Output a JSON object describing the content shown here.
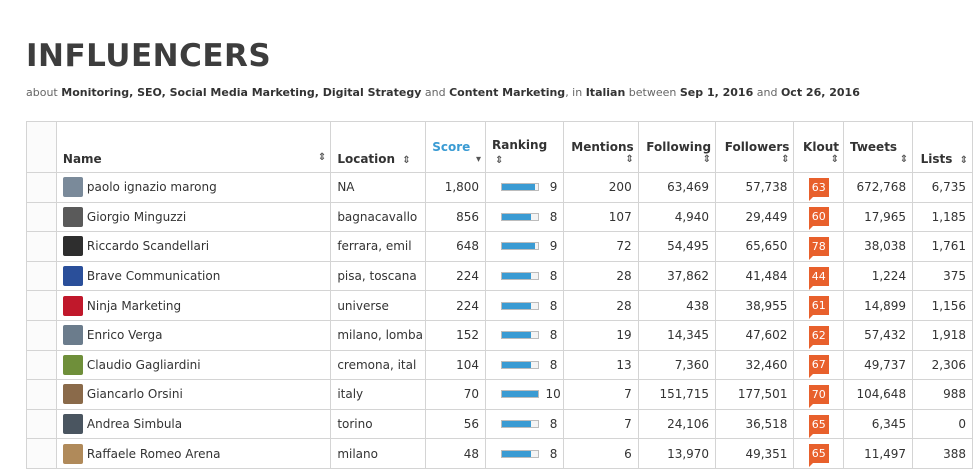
{
  "header": {
    "title": "INFLUENCERS",
    "subtitle": {
      "prefix": "about",
      "topics": "Monitoring, SEO, Social Media Marketing, Digital Strategy",
      "and1": "and",
      "topic_last": "Content Marketing",
      "in": ", in",
      "language": "Italian",
      "between": "between",
      "date_from": "Sep 1, 2016",
      "and2": "and",
      "date_to": "Oct 26, 2016"
    }
  },
  "columns": {
    "name": "Name",
    "location": "Location",
    "score": "Score",
    "ranking": "Ranking",
    "mentions": "Mentions",
    "following": "Following",
    "followers": "Followers",
    "klout": "Klout",
    "tweets": "Tweets",
    "lists": "Lists",
    "sort_both": "⇕",
    "sort_down": "▾"
  },
  "accent_color": "#3a9bd3",
  "klout_color": "#e8602c",
  "rows": [
    {
      "name": "paolo ignazio marong",
      "location": "NA",
      "score": "1,800",
      "ranking": "9",
      "ranking_fill": 0.9,
      "mentions": "200",
      "following": "63,469",
      "followers": "57,738",
      "klout": "63",
      "tweets": "672,768",
      "lists": "6,735",
      "avatar_color": "#7a8a9a"
    },
    {
      "name": "Giorgio Minguzzi",
      "location": "bagnacavallo",
      "score": "856",
      "ranking": "8",
      "ranking_fill": 0.8,
      "mentions": "107",
      "following": "4,940",
      "followers": "29,449",
      "klout": "60",
      "tweets": "17,965",
      "lists": "1,185",
      "avatar_color": "#5a5a5a"
    },
    {
      "name": "Riccardo Scandellari",
      "location": "ferrara, emil",
      "score": "648",
      "ranking": "9",
      "ranking_fill": 0.9,
      "mentions": "72",
      "following": "54,495",
      "followers": "65,650",
      "klout": "78",
      "tweets": "38,038",
      "lists": "1,761",
      "avatar_color": "#2e2e2e"
    },
    {
      "name": "Brave Communication",
      "location": "pisa, toscana",
      "score": "224",
      "ranking": "8",
      "ranking_fill": 0.8,
      "mentions": "28",
      "following": "37,862",
      "followers": "41,484",
      "klout": "44",
      "tweets": "1,224",
      "lists": "375",
      "avatar_color": "#2a4f9a"
    },
    {
      "name": "Ninja Marketing",
      "location": "universe",
      "score": "224",
      "ranking": "8",
      "ranking_fill": 0.8,
      "mentions": "28",
      "following": "438",
      "followers": "38,955",
      "klout": "61",
      "tweets": "14,899",
      "lists": "1,156",
      "avatar_color": "#c0182b"
    },
    {
      "name": "Enrico Verga",
      "location": "milano, lomba",
      "score": "152",
      "ranking": "8",
      "ranking_fill": 0.8,
      "mentions": "19",
      "following": "14,345",
      "followers": "47,602",
      "klout": "62",
      "tweets": "57,432",
      "lists": "1,918",
      "avatar_color": "#6b7c8c"
    },
    {
      "name": "Claudio Gagliardini",
      "location": "cremona, ital",
      "score": "104",
      "ranking": "8",
      "ranking_fill": 0.8,
      "mentions": "13",
      "following": "7,360",
      "followers": "32,460",
      "klout": "67",
      "tweets": "49,737",
      "lists": "2,306",
      "avatar_color": "#6f8f3a"
    },
    {
      "name": "Giancarlo Orsini",
      "location": "italy",
      "score": "70",
      "ranking": "10",
      "ranking_fill": 1.0,
      "mentions": "7",
      "following": "151,715",
      "followers": "177,501",
      "klout": "70",
      "tweets": "104,648",
      "lists": "988",
      "avatar_color": "#8a6a4a"
    },
    {
      "name": "Andrea Simbula",
      "location": "torino",
      "score": "56",
      "ranking": "8",
      "ranking_fill": 0.8,
      "mentions": "7",
      "following": "24,106",
      "followers": "36,518",
      "klout": "65",
      "tweets": "6,345",
      "lists": "0",
      "avatar_color": "#4a5560"
    },
    {
      "name": "Raffaele Romeo Arena",
      "location": "milano",
      "score": "48",
      "ranking": "8",
      "ranking_fill": 0.8,
      "mentions": "6",
      "following": "13,970",
      "followers": "49,351",
      "klout": "65",
      "tweets": "11,497",
      "lists": "388",
      "avatar_color": "#b08a5a"
    }
  ]
}
